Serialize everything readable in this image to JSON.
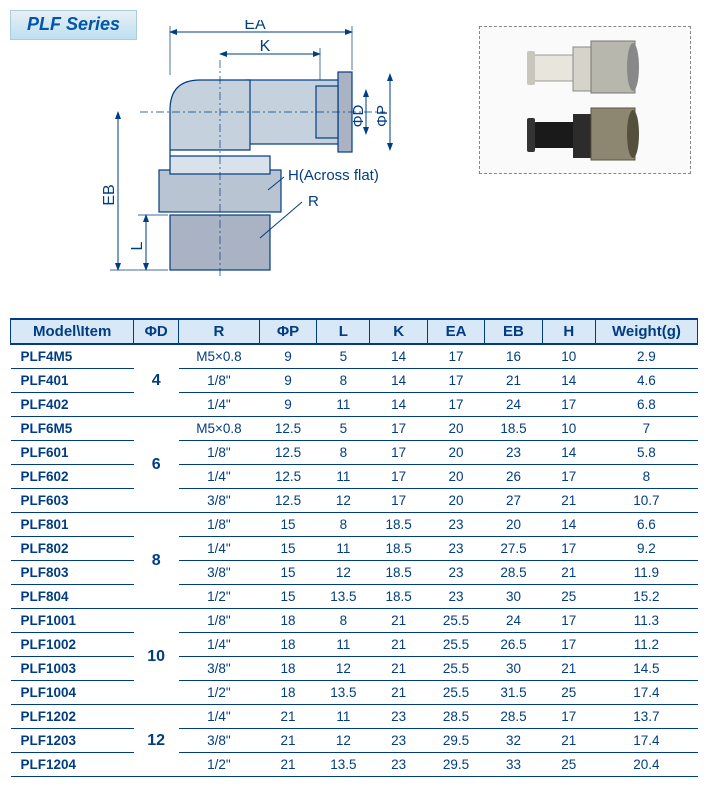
{
  "title": "PLF Series",
  "diagram_labels": {
    "EA": "EA",
    "K": "K",
    "phiD": "ΦD",
    "phiP": "ΦP",
    "H": "H(Across flat)",
    "R": "R",
    "EB": "EB",
    "L": "L"
  },
  "diagram_colors": {
    "stroke": "#003d82",
    "body_fill_light": "#d9e2ea",
    "body_fill_mid": "#b8c4d1",
    "body_fill_dark": "#a9b3c3"
  },
  "photo_colors": {
    "light_body": "#e7e5dc",
    "light_nut": "#b7b7ad",
    "dark_body": "#1a1a1a",
    "dark_nut": "#8d8670"
  },
  "table": {
    "theme": {
      "header_bg": "#d9e8f7",
      "text_color": "#003d82",
      "border_color": "#003d82"
    },
    "columns": [
      "Model\\Item",
      "ΦD",
      "R",
      "ΦP",
      "L",
      "K",
      "EA",
      "EB",
      "H",
      "Weight(g)"
    ],
    "groups": [
      {
        "d": "4",
        "rows": [
          {
            "model": "PLF4M5",
            "R": "M5×0.8",
            "P": "9",
            "L": "5",
            "K": "14",
            "EA": "17",
            "EB": "16",
            "H": "10",
            "W": "2.9"
          },
          {
            "model": "PLF401",
            "R": "1/8\"",
            "P": "9",
            "L": "8",
            "K": "14",
            "EA": "17",
            "EB": "21",
            "H": "14",
            "W": "4.6"
          },
          {
            "model": "PLF402",
            "R": "1/4\"",
            "P": "9",
            "L": "11",
            "K": "14",
            "EA": "17",
            "EB": "24",
            "H": "17",
            "W": "6.8"
          }
        ]
      },
      {
        "d": "6",
        "rows": [
          {
            "model": "PLF6M5",
            "R": "M5×0.8",
            "P": "12.5",
            "L": "5",
            "K": "17",
            "EA": "20",
            "EB": "18.5",
            "H": "10",
            "W": "7"
          },
          {
            "model": "PLF601",
            "R": "1/8\"",
            "P": "12.5",
            "L": "8",
            "K": "17",
            "EA": "20",
            "EB": "23",
            "H": "14",
            "W": "5.8"
          },
          {
            "model": "PLF602",
            "R": "1/4\"",
            "P": "12.5",
            "L": "11",
            "K": "17",
            "EA": "20",
            "EB": "26",
            "H": "17",
            "W": "8"
          },
          {
            "model": "PLF603",
            "R": "3/8\"",
            "P": "12.5",
            "L": "12",
            "K": "17",
            "EA": "20",
            "EB": "27",
            "H": "21",
            "W": "10.7"
          }
        ]
      },
      {
        "d": "8",
        "rows": [
          {
            "model": "PLF801",
            "R": "1/8\"",
            "P": "15",
            "L": "8",
            "K": "18.5",
            "EA": "23",
            "EB": "20",
            "H": "14",
            "W": "6.6"
          },
          {
            "model": "PLF802",
            "R": "1/4\"",
            "P": "15",
            "L": "11",
            "K": "18.5",
            "EA": "23",
            "EB": "27.5",
            "H": "17",
            "W": "9.2"
          },
          {
            "model": "PLF803",
            "R": "3/8\"",
            "P": "15",
            "L": "12",
            "K": "18.5",
            "EA": "23",
            "EB": "28.5",
            "H": "21",
            "W": "11.9"
          },
          {
            "model": "PLF804",
            "R": "1/2\"",
            "P": "15",
            "L": "13.5",
            "K": "18.5",
            "EA": "23",
            "EB": "30",
            "H": "25",
            "W": "15.2"
          }
        ]
      },
      {
        "d": "10",
        "rows": [
          {
            "model": "PLF1001",
            "R": "1/8\"",
            "P": "18",
            "L": "8",
            "K": "21",
            "EA": "25.5",
            "EB": "24",
            "H": "17",
            "W": "11.3"
          },
          {
            "model": "PLF1002",
            "R": "1/4\"",
            "P": "18",
            "L": "11",
            "K": "21",
            "EA": "25.5",
            "EB": "26.5",
            "H": "17",
            "W": "11.2"
          },
          {
            "model": "PLF1003",
            "R": "3/8\"",
            "P": "18",
            "L": "12",
            "K": "21",
            "EA": "25.5",
            "EB": "30",
            "H": "21",
            "W": "14.5"
          },
          {
            "model": "PLF1004",
            "R": "1/2\"",
            "P": "18",
            "L": "13.5",
            "K": "21",
            "EA": "25.5",
            "EB": "31.5",
            "H": "25",
            "W": "17.4"
          }
        ]
      },
      {
        "d": "12",
        "rows": [
          {
            "model": "PLF1202",
            "R": "1/4\"",
            "P": "21",
            "L": "11",
            "K": "23",
            "EA": "28.5",
            "EB": "28.5",
            "H": "17",
            "W": "13.7"
          },
          {
            "model": "PLF1203",
            "R": "3/8\"",
            "P": "21",
            "L": "12",
            "K": "23",
            "EA": "29.5",
            "EB": "32",
            "H": "21",
            "W": "17.4"
          },
          {
            "model": "PLF1204",
            "R": "1/2\"",
            "P": "21",
            "L": "13.5",
            "K": "23",
            "EA": "29.5",
            "EB": "33",
            "H": "25",
            "W": "20.4"
          }
        ]
      }
    ]
  }
}
